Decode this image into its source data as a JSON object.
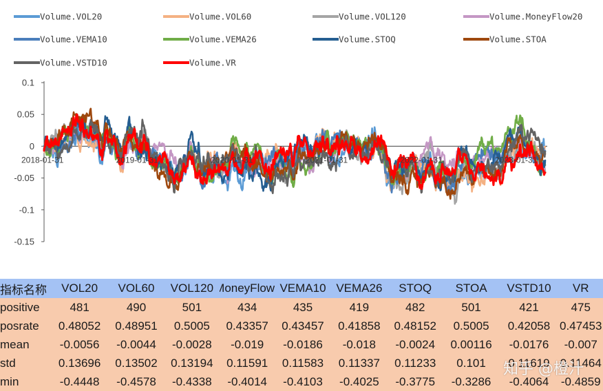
{
  "chart_data": {
    "type": "line",
    "title": "",
    "xlabel": "",
    "ylabel": "",
    "ylim": [
      -0.15,
      0.1
    ],
    "yticks": [
      "0.1",
      "0.05",
      "0",
      "-0.05",
      "-0.1",
      "-0.15"
    ],
    "ytick_values": [
      0.1,
      0.05,
      0,
      -0.05,
      -0.1,
      -0.15
    ],
    "xtick_labels": [
      "2018-01-31",
      "2019-01-31",
      "2020-01-31",
      "2021-01-31",
      "2022-01-31",
      "2023-01-31"
    ],
    "n_points": 1000,
    "series": [
      {
        "name": "Volume.VOL20",
        "color": "#5b9bd5",
        "seed": 11
      },
      {
        "name": "Volume.VOL60",
        "color": "#f4b183",
        "seed": 23
      },
      {
        "name": "Volume.VOL120",
        "color": "#a5a5a5",
        "seed": 37
      },
      {
        "name": "Volume.MoneyFlow20",
        "color": "#c497c4",
        "seed": 41
      },
      {
        "name": "Volume.VEMA10",
        "color": "#4a7ebb",
        "seed": 53
      },
      {
        "name": "Volume.VEMA26",
        "color": "#70ad47",
        "seed": 67
      },
      {
        "name": "Volume.STOQ",
        "color": "#255e91",
        "seed": 79
      },
      {
        "name": "Volume.STOA",
        "color": "#9e480e",
        "seed": 83
      },
      {
        "name": "Volume.VSTD10",
        "color": "#636363",
        "seed": 97
      },
      {
        "name": "Volume.VR",
        "color": "#ff0000",
        "seed": 101
      }
    ]
  },
  "table": {
    "columns": [
      "指标名称",
      "VOL20",
      "VOL60",
      "VOL120",
      "MoneyFlow",
      "VEMA10",
      "VEMA26",
      "STOQ",
      "STOA",
      "VSTD10",
      "VR"
    ],
    "rows": [
      [
        "positive",
        "481",
        "490",
        "501",
        "434",
        "435",
        "419",
        "482",
        "501",
        "421",
        "475"
      ],
      [
        "posrate",
        "0.48052",
        "0.48951",
        "0.5005",
        "0.43357",
        "0.43457",
        "0.41858",
        "0.48152",
        "0.5005",
        "0.42058",
        "0.47453"
      ],
      [
        "mean",
        "-0.0056",
        "-0.0044",
        "-0.0028",
        "-0.019",
        "-0.0186",
        "-0.018",
        "-0.0024",
        "0.00116",
        "-0.0176",
        "-0.007"
      ],
      [
        "std",
        "0.13696",
        "0.13502",
        "0.13194",
        "0.11591",
        "0.11583",
        "0.11337",
        "0.11233",
        "0.101",
        "0.11619",
        "0.11464"
      ],
      [
        "min",
        "-0.4448",
        "-0.4578",
        "-0.4338",
        "-0.4014",
        "-0.4103",
        "-0.4025",
        "-0.3775",
        "-0.3286",
        "-0.4064",
        "-0.4859"
      ]
    ]
  },
  "watermark": "知乎 @橙汁"
}
